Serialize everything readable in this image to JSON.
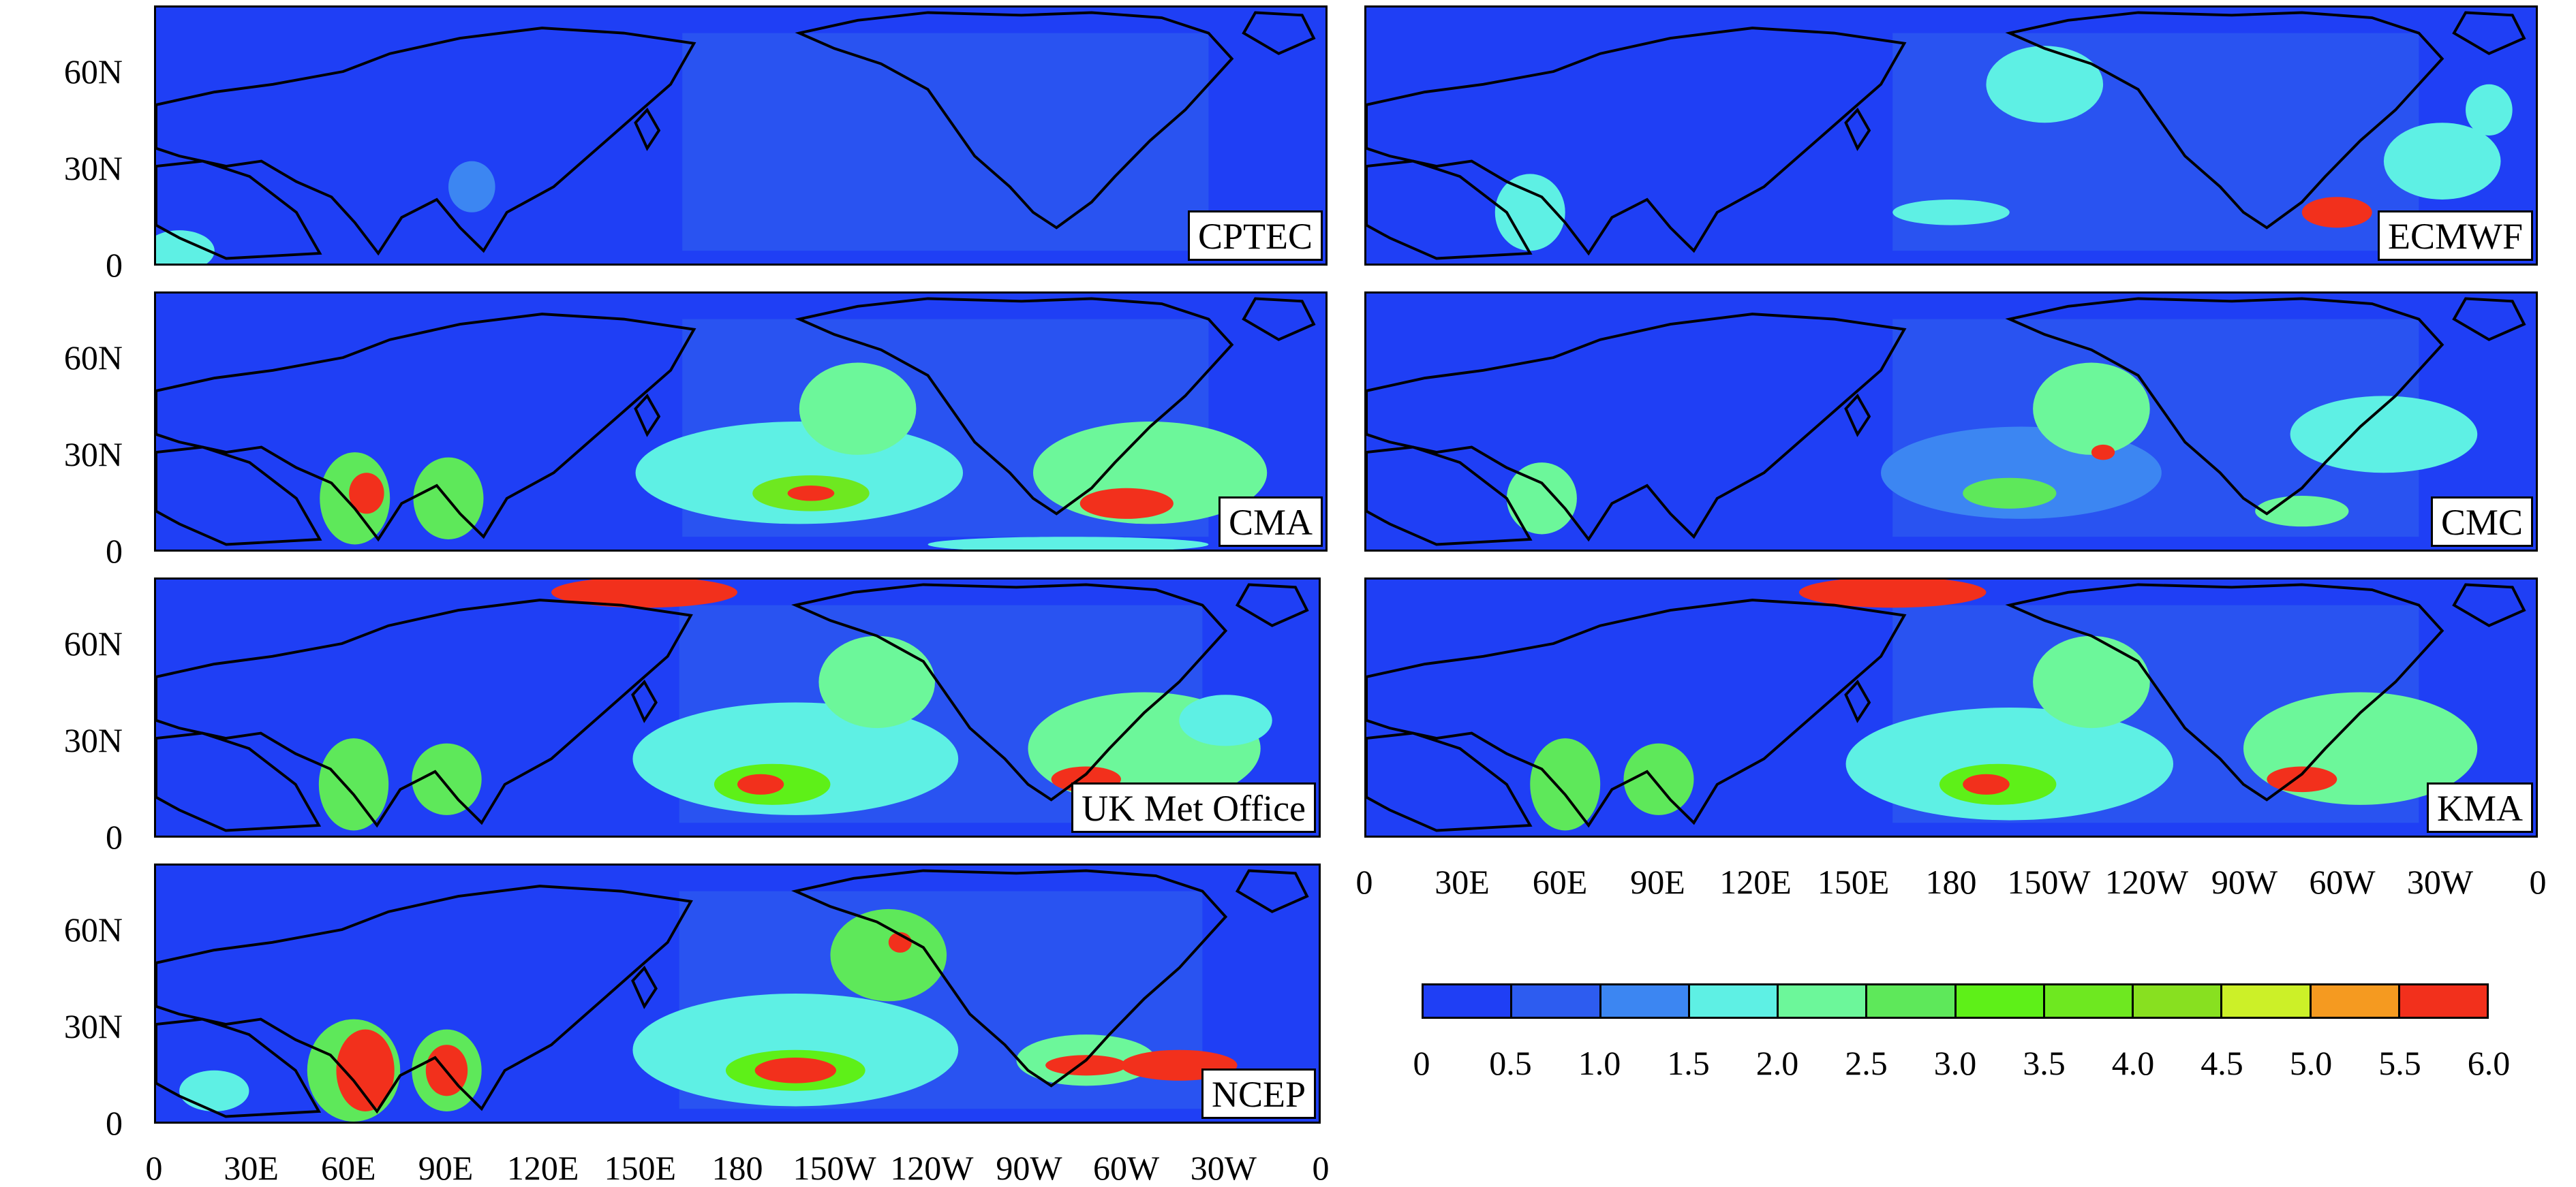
{
  "panels": [
    {
      "key": "cptec",
      "label": "CPTEC"
    },
    {
      "key": "ecmwf",
      "label": "ECMWF"
    },
    {
      "key": "cma",
      "label": "CMA"
    },
    {
      "key": "cmc",
      "label": "CMC"
    },
    {
      "key": "ukmo",
      "label": "UK Met Office"
    },
    {
      "key": "kma",
      "label": "KMA"
    },
    {
      "key": "ncep",
      "label": "NCEP"
    }
  ],
  "y_ticks": [
    "60N",
    "30N",
    "0"
  ],
  "x_ticks": [
    "0",
    "30E",
    "60E",
    "90E",
    "120E",
    "150E",
    "180",
    "150W",
    "120W",
    "90W",
    "60W",
    "30W",
    "0"
  ],
  "colorbar": {
    "labels": [
      "0",
      "0.5",
      "1.0",
      "1.5",
      "2.0",
      "2.5",
      "3.0",
      "3.5",
      "4.0",
      "4.5",
      "5.0",
      "5.5",
      "6.0"
    ],
    "colors": [
      "#1f3ff5",
      "#2d5cf0",
      "#3c86f2",
      "#5ef0e4",
      "#6cf79a",
      "#5ee85a",
      "#5ef018",
      "#6ee820",
      "#88e020",
      "#ccf028",
      "#f59a20",
      "#f2301c"
    ]
  },
  "colors": {
    "background_field": "#1f3ff5",
    "coast": "#000000"
  }
}
